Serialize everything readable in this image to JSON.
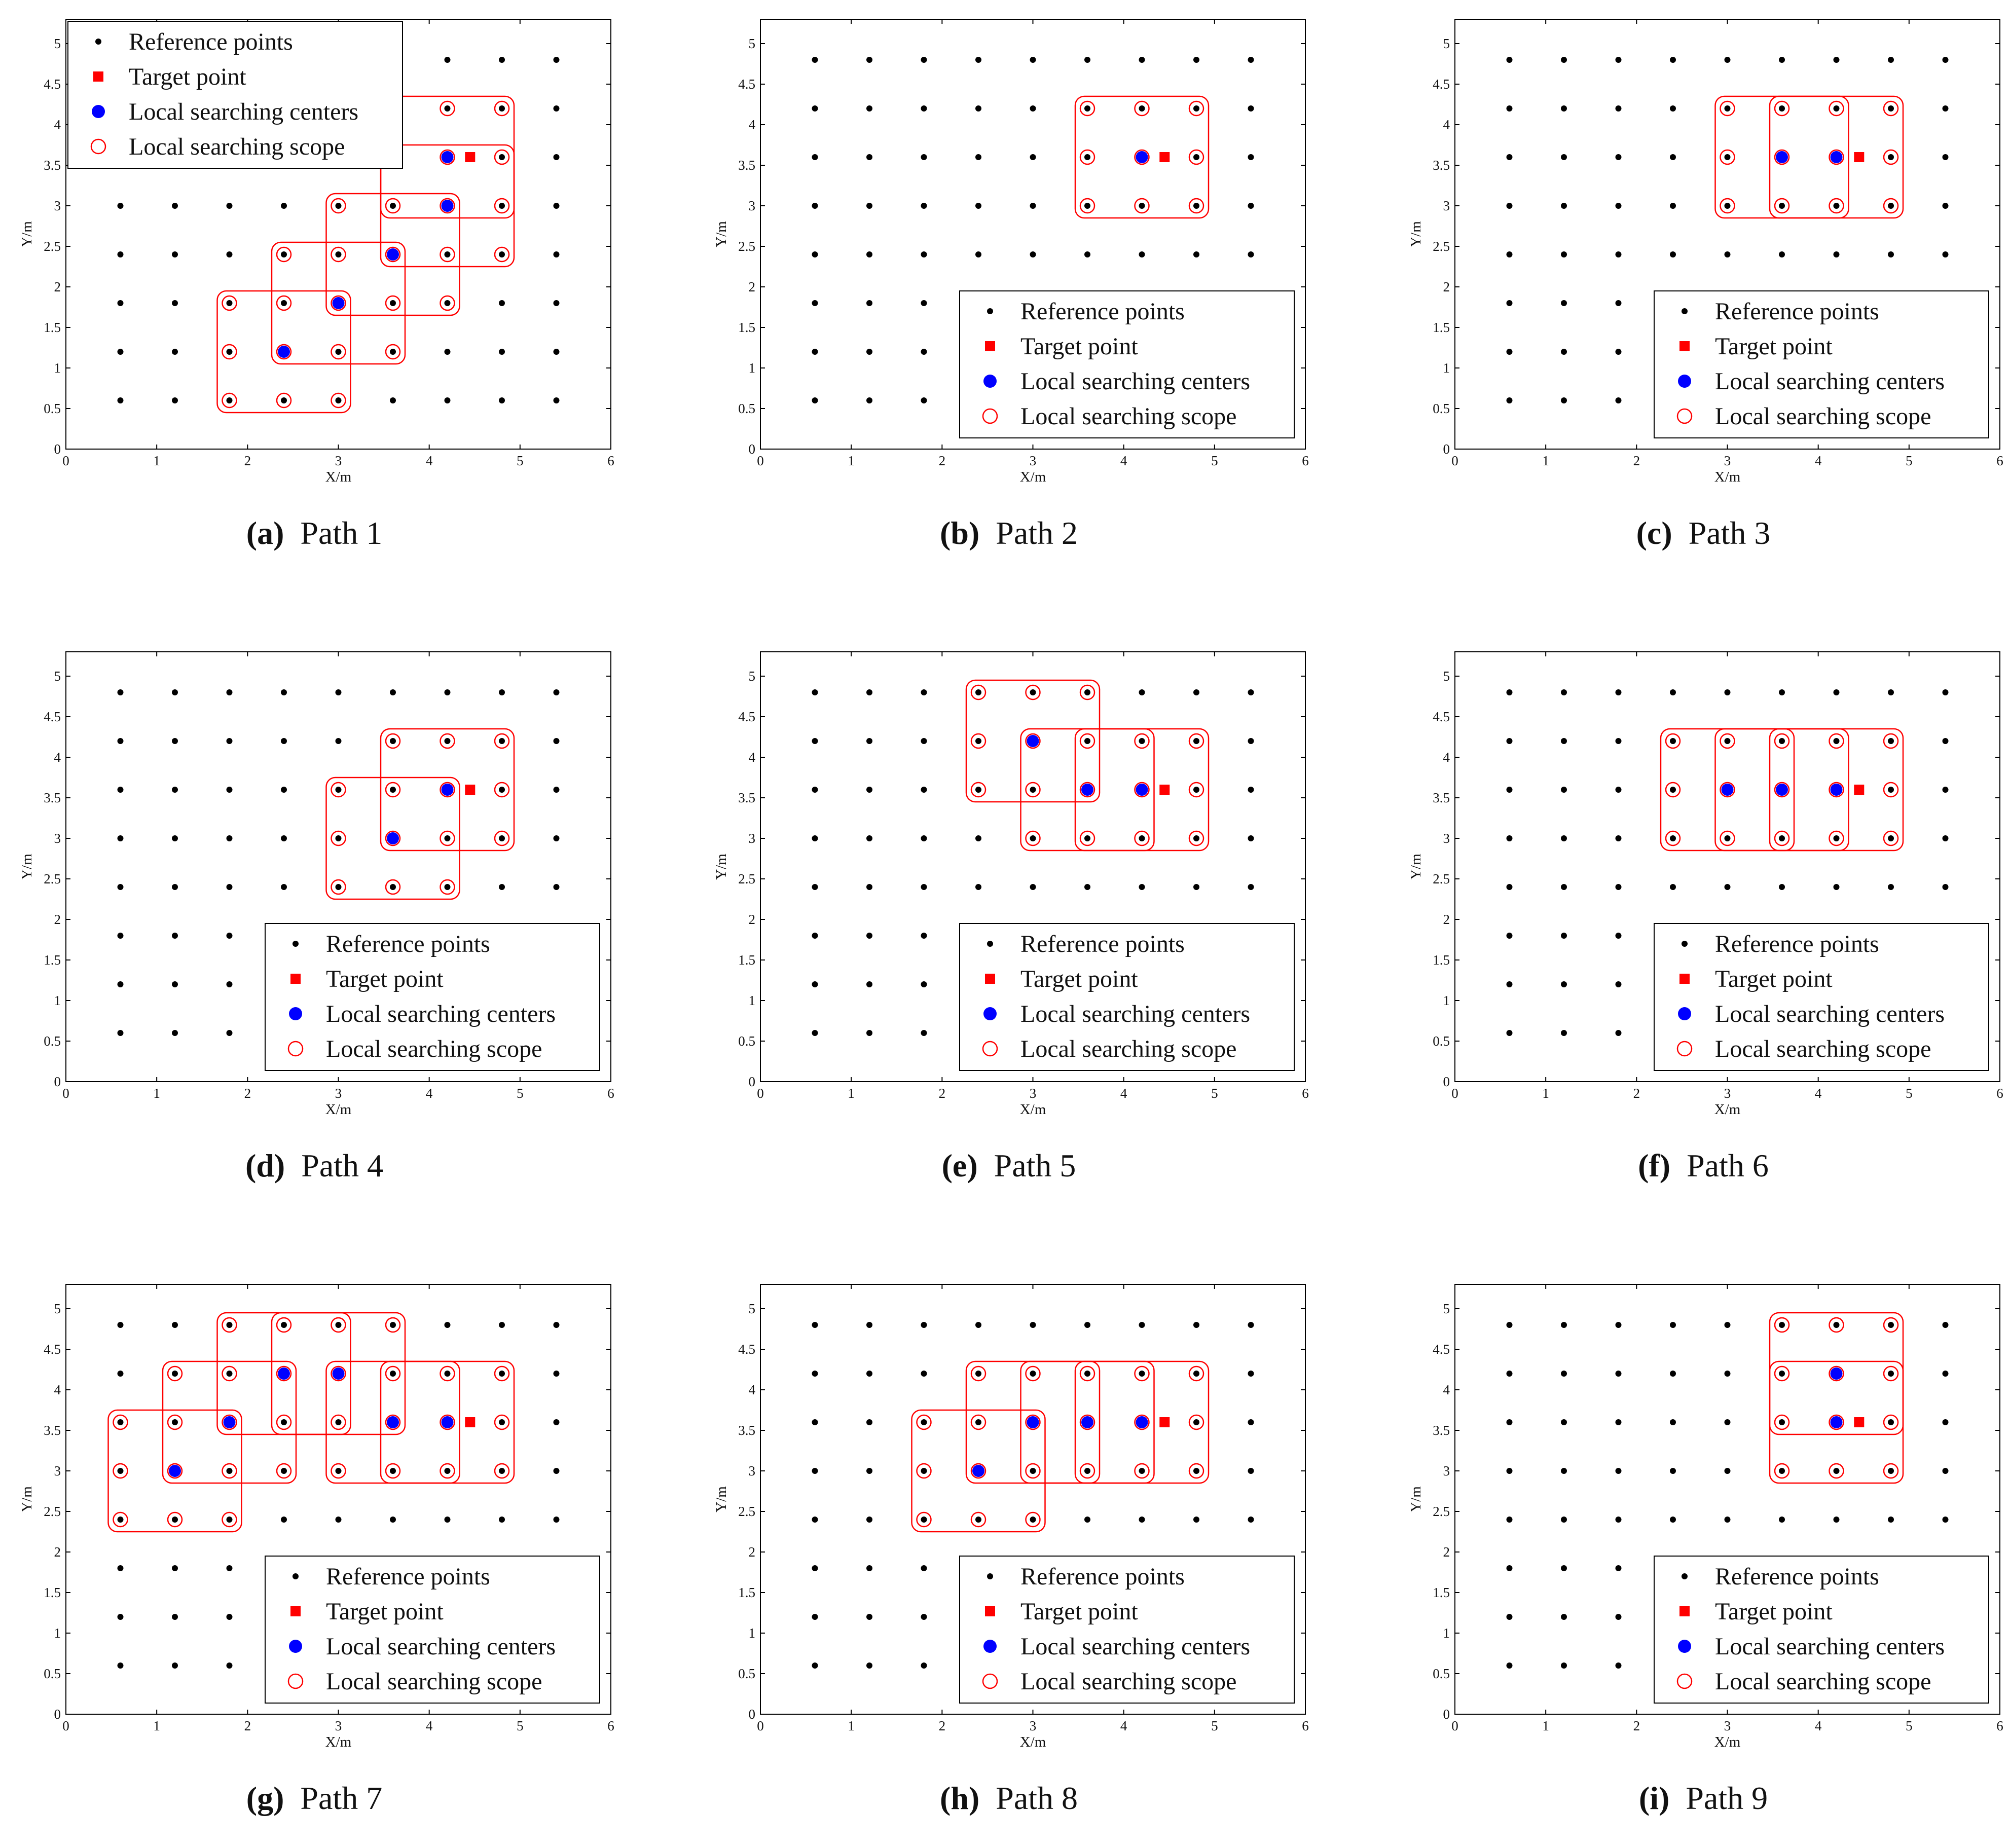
{
  "colors": {
    "reference": "#000000",
    "target": "#ff0000",
    "center": "#0000ff",
    "scope": "#ff0000"
  },
  "legend_labels": [
    "Reference points",
    "Target point",
    "Local searching centers",
    "Local searching scope"
  ],
  "chart_data": [
    {
      "id": "a",
      "letter": "(a)",
      "title": "Path 1",
      "type": "scatter",
      "xlabel": "X/m",
      "ylabel": "Y/m",
      "xlim": [
        0,
        6
      ],
      "ylim": [
        0,
        5.3
      ],
      "xticks": [
        "0",
        "1",
        "2",
        "3",
        "4",
        "5",
        "6"
      ],
      "yticks": [
        "0",
        "0.5",
        "1",
        "1.5",
        "2",
        "2.5",
        "3",
        "3.5",
        "4",
        "4.5",
        "5"
      ],
      "grid_x": [
        0.6,
        1.2,
        1.8,
        2.4,
        3.0,
        3.6,
        4.2,
        4.8,
        5.4
      ],
      "grid_y": [
        0.6,
        1.2,
        1.8,
        2.4,
        3.0,
        3.6,
        4.2,
        4.8
      ],
      "target": [
        4.45,
        3.6
      ],
      "centers": [
        [
          2.4,
          1.2
        ],
        [
          3.0,
          1.8
        ],
        [
          3.6,
          2.4
        ],
        [
          4.2,
          3.0
        ],
        [
          4.2,
          3.6
        ]
      ],
      "legend_position": "top-left"
    },
    {
      "id": "b",
      "letter": "(b)",
      "title": "Path 2",
      "type": "scatter",
      "xlabel": "X/m",
      "ylabel": "Y/m",
      "xlim": [
        0,
        6
      ],
      "ylim": [
        0,
        5.3
      ],
      "xticks": [
        "0",
        "1",
        "2",
        "3",
        "4",
        "5",
        "6"
      ],
      "yticks": [
        "0",
        "0.5",
        "1",
        "1.5",
        "2",
        "2.5",
        "3",
        "3.5",
        "4",
        "4.5",
        "5"
      ],
      "grid_x": [
        0.6,
        1.2,
        1.8,
        2.4,
        3.0,
        3.6,
        4.2,
        4.8,
        5.4
      ],
      "grid_y": [
        0.6,
        1.2,
        1.8,
        2.4,
        3.0,
        3.6,
        4.2,
        4.8
      ],
      "target": [
        4.45,
        3.6
      ],
      "centers": [
        [
          4.2,
          3.6
        ]
      ],
      "legend_position": "bottom-right"
    },
    {
      "id": "c",
      "letter": "(c)",
      "title": "Path 3",
      "type": "scatter",
      "xlabel": "X/m",
      "ylabel": "Y/m",
      "xlim": [
        0,
        6
      ],
      "ylim": [
        0,
        5.3
      ],
      "xticks": [
        "0",
        "1",
        "2",
        "3",
        "4",
        "5",
        "6"
      ],
      "yticks": [
        "0",
        "0.5",
        "1",
        "1.5",
        "2",
        "2.5",
        "3",
        "3.5",
        "4",
        "4.5",
        "5"
      ],
      "grid_x": [
        0.6,
        1.2,
        1.8,
        2.4,
        3.0,
        3.6,
        4.2,
        4.8,
        5.4
      ],
      "grid_y": [
        0.6,
        1.2,
        1.8,
        2.4,
        3.0,
        3.6,
        4.2,
        4.8
      ],
      "target": [
        4.45,
        3.6
      ],
      "centers": [
        [
          3.6,
          3.6
        ],
        [
          4.2,
          3.6
        ]
      ],
      "legend_position": "bottom-right"
    },
    {
      "id": "d",
      "letter": "(d)",
      "title": "Path 4",
      "type": "scatter",
      "xlabel": "X/m",
      "ylabel": "Y/m",
      "xlim": [
        0,
        6
      ],
      "ylim": [
        0,
        5.3
      ],
      "xticks": [
        "0",
        "1",
        "2",
        "3",
        "4",
        "5",
        "6"
      ],
      "yticks": [
        "0",
        "0.5",
        "1",
        "1.5",
        "2",
        "2.5",
        "3",
        "3.5",
        "4",
        "4.5",
        "5"
      ],
      "grid_x": [
        0.6,
        1.2,
        1.8,
        2.4,
        3.0,
        3.6,
        4.2,
        4.8,
        5.4
      ],
      "grid_y": [
        0.6,
        1.2,
        1.8,
        2.4,
        3.0,
        3.6,
        4.2,
        4.8
      ],
      "target": [
        4.45,
        3.6
      ],
      "centers": [
        [
          3.6,
          3.0
        ],
        [
          4.2,
          3.6
        ]
      ],
      "legend_position": "bottom-right"
    },
    {
      "id": "e",
      "letter": "(e)",
      "title": "Path 5",
      "type": "scatter",
      "xlabel": "X/m",
      "ylabel": "Y/m",
      "xlim": [
        0,
        6
      ],
      "ylim": [
        0,
        5.3
      ],
      "xticks": [
        "0",
        "1",
        "2",
        "3",
        "4",
        "5",
        "6"
      ],
      "yticks": [
        "0",
        "0.5",
        "1",
        "1.5",
        "2",
        "2.5",
        "3",
        "3.5",
        "4",
        "4.5",
        "5"
      ],
      "grid_x": [
        0.6,
        1.2,
        1.8,
        2.4,
        3.0,
        3.6,
        4.2,
        4.8,
        5.4
      ],
      "grid_y": [
        0.6,
        1.2,
        1.8,
        2.4,
        3.0,
        3.6,
        4.2,
        4.8
      ],
      "target": [
        4.45,
        3.6
      ],
      "centers": [
        [
          3.0,
          4.2
        ],
        [
          3.6,
          3.6
        ],
        [
          4.2,
          3.6
        ]
      ],
      "legend_position": "bottom-right"
    },
    {
      "id": "f",
      "letter": "(f)",
      "title": "Path 6",
      "type": "scatter",
      "xlabel": "X/m",
      "ylabel": "Y/m",
      "xlim": [
        0,
        6
      ],
      "ylim": [
        0,
        5.3
      ],
      "xticks": [
        "0",
        "1",
        "2",
        "3",
        "4",
        "5",
        "6"
      ],
      "yticks": [
        "0",
        "0.5",
        "1",
        "1.5",
        "2",
        "2.5",
        "3",
        "3.5",
        "4",
        "4.5",
        "5"
      ],
      "grid_x": [
        0.6,
        1.2,
        1.8,
        2.4,
        3.0,
        3.6,
        4.2,
        4.8,
        5.4
      ],
      "grid_y": [
        0.6,
        1.2,
        1.8,
        2.4,
        3.0,
        3.6,
        4.2,
        4.8
      ],
      "target": [
        4.45,
        3.6
      ],
      "centers": [
        [
          3.0,
          3.6
        ],
        [
          3.6,
          3.6
        ],
        [
          4.2,
          3.6
        ]
      ],
      "legend_position": "bottom-right"
    },
    {
      "id": "g",
      "letter": "(g)",
      "title": "Path 7",
      "type": "scatter",
      "xlabel": "X/m",
      "ylabel": "Y/m",
      "xlim": [
        0,
        6
      ],
      "ylim": [
        0,
        5.3
      ],
      "xticks": [
        "0",
        "1",
        "2",
        "3",
        "4",
        "5",
        "6"
      ],
      "yticks": [
        "0",
        "0.5",
        "1",
        "1.5",
        "2",
        "2.5",
        "3",
        "3.5",
        "4",
        "4.5",
        "5"
      ],
      "grid_x": [
        0.6,
        1.2,
        1.8,
        2.4,
        3.0,
        3.6,
        4.2,
        4.8,
        5.4
      ],
      "grid_y": [
        0.6,
        1.2,
        1.8,
        2.4,
        3.0,
        3.6,
        4.2,
        4.8
      ],
      "target": [
        4.45,
        3.6
      ],
      "centers": [
        [
          1.2,
          3.0
        ],
        [
          1.8,
          3.6
        ],
        [
          2.4,
          4.2
        ],
        [
          3.0,
          4.2
        ],
        [
          3.6,
          3.6
        ],
        [
          4.2,
          3.6
        ]
      ],
      "legend_position": "bottom-right"
    },
    {
      "id": "h",
      "letter": "(h)",
      "title": "Path 8",
      "type": "scatter",
      "xlabel": "X/m",
      "ylabel": "Y/m",
      "xlim": [
        0,
        6
      ],
      "ylim": [
        0,
        5.3
      ],
      "xticks": [
        "0",
        "1",
        "2",
        "3",
        "4",
        "5",
        "6"
      ],
      "yticks": [
        "0",
        "0.5",
        "1",
        "1.5",
        "2",
        "2.5",
        "3",
        "3.5",
        "4",
        "4.5",
        "5"
      ],
      "grid_x": [
        0.6,
        1.2,
        1.8,
        2.4,
        3.0,
        3.6,
        4.2,
        4.8,
        5.4
      ],
      "grid_y": [
        0.6,
        1.2,
        1.8,
        2.4,
        3.0,
        3.6,
        4.2,
        4.8
      ],
      "target": [
        4.45,
        3.6
      ],
      "centers": [
        [
          2.4,
          3.0
        ],
        [
          3.0,
          3.6
        ],
        [
          3.6,
          3.6
        ],
        [
          4.2,
          3.6
        ]
      ],
      "legend_position": "bottom-right"
    },
    {
      "id": "i",
      "letter": "(i)",
      "title": "Path 9",
      "type": "scatter",
      "xlabel": "X/m",
      "ylabel": "Y/m",
      "xlim": [
        0,
        6
      ],
      "ylim": [
        0,
        5.3
      ],
      "xticks": [
        "0",
        "1",
        "2",
        "3",
        "4",
        "5",
        "6"
      ],
      "yticks": [
        "0",
        "0.5",
        "1",
        "1.5",
        "2",
        "2.5",
        "3",
        "3.5",
        "4",
        "4.5",
        "5"
      ],
      "grid_x": [
        0.6,
        1.2,
        1.8,
        2.4,
        3.0,
        3.6,
        4.2,
        4.8,
        5.4
      ],
      "grid_y": [
        0.6,
        1.2,
        1.8,
        2.4,
        3.0,
        3.6,
        4.2,
        4.8
      ],
      "target": [
        4.45,
        3.6
      ],
      "centers": [
        [
          4.2,
          4.2
        ],
        [
          4.2,
          3.6
        ]
      ],
      "legend_position": "bottom-right"
    }
  ]
}
